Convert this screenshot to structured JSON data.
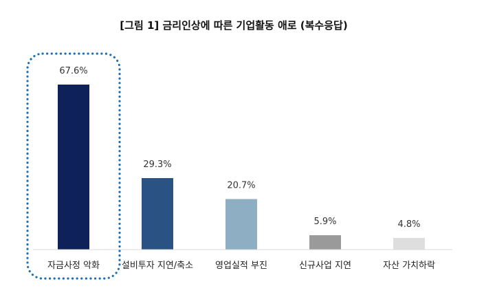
{
  "chart_data": {
    "type": "bar",
    "title": "[그림 1] 금리인상에 따른 기업활동 애로 (복수응답)",
    "categories": [
      "자금사정 악화",
      "설비투자 지연/축소",
      "영업실적 부진",
      "신규사업 지연",
      "자산 가치하락"
    ],
    "values": [
      67.6,
      29.3,
      20.7,
      5.9,
      4.8
    ],
    "value_labels": [
      "67.6%",
      "29.3%",
      "20.7%",
      "5.9%",
      "4.8%"
    ],
    "unit": "%",
    "colors": [
      "#0e2259",
      "#2a5282",
      "#8eaec4",
      "#9a9a9a",
      "#dedede"
    ],
    "highlight": {
      "category_index": 0,
      "style": "dotted",
      "color": "#1f6fb2"
    },
    "ylim": [
      0,
      70
    ],
    "y_axis_visible": false,
    "grid": false,
    "legend": "none"
  }
}
